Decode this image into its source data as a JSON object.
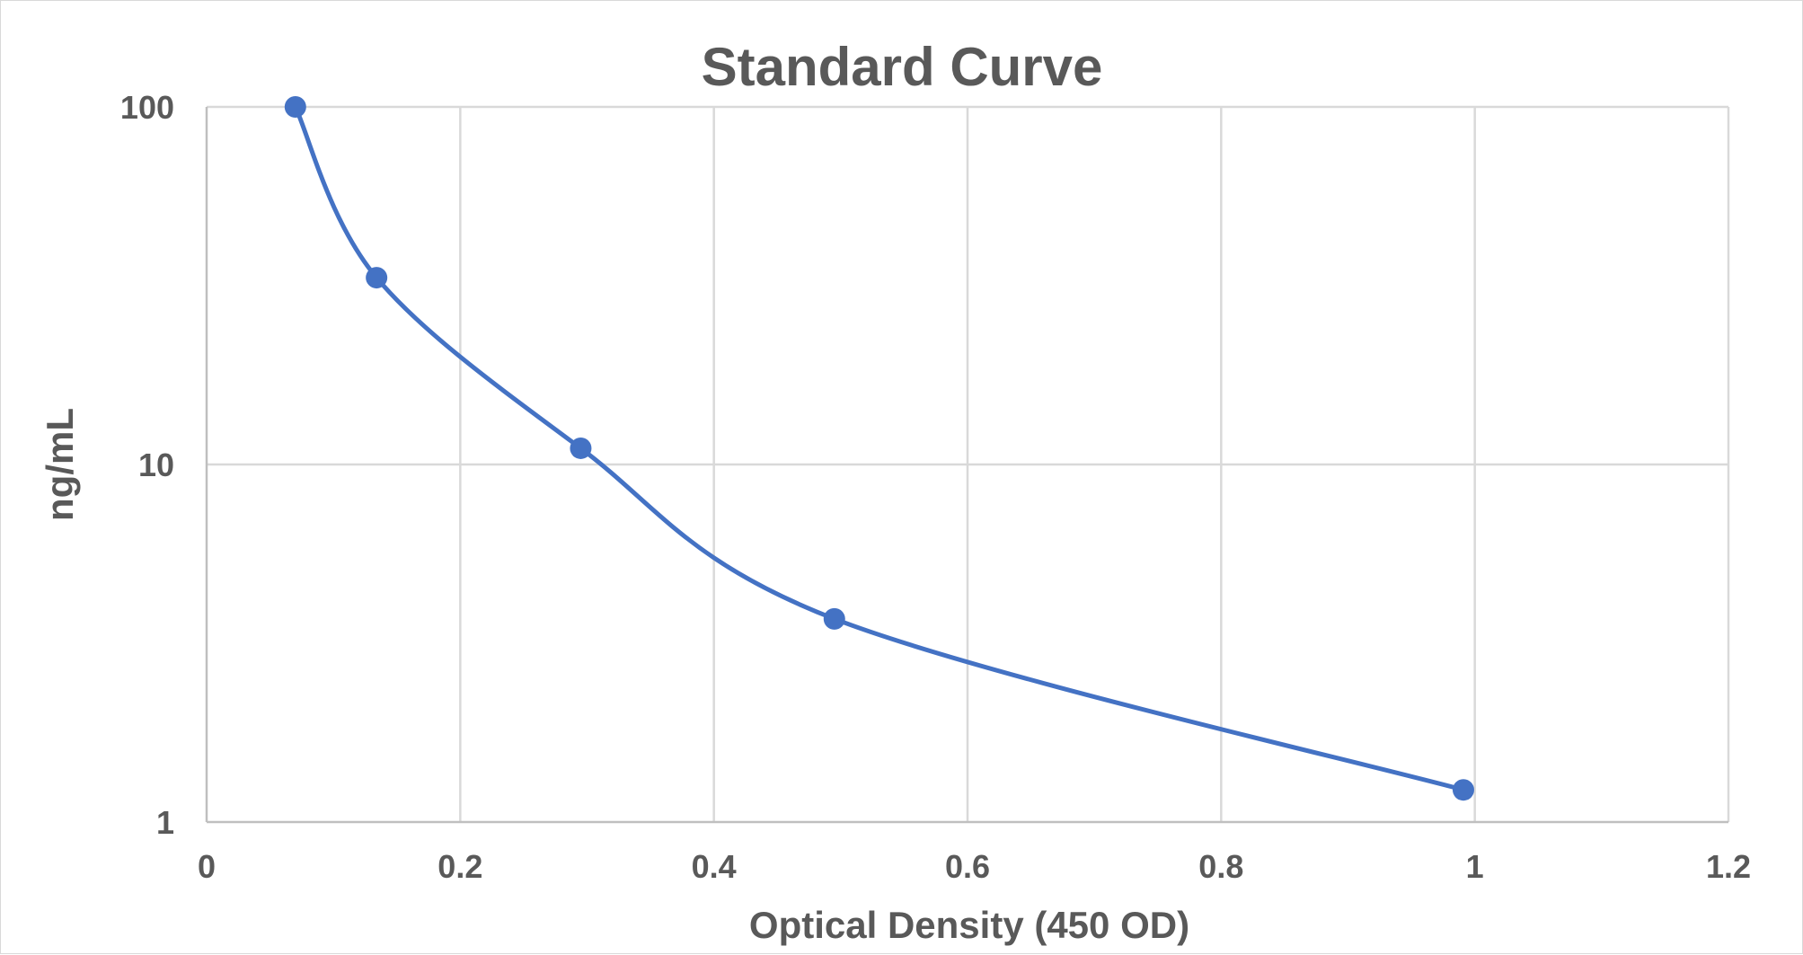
{
  "chart_data": {
    "type": "scatter",
    "title": "Standard Curve",
    "xlabel": "Optical Density (450 OD)",
    "ylabel": "ng/mL",
    "xlim": [
      0,
      1.2
    ],
    "ylim": [
      1,
      100
    ],
    "y_scale": "log",
    "x_ticks": [
      "0",
      "0.2",
      "0.4",
      "0.6",
      "0.8",
      "1",
      "1.2"
    ],
    "y_ticks": [
      "1",
      "10",
      "100"
    ],
    "grid": true,
    "legend": "none",
    "line_style": "smoothed",
    "series": [
      {
        "color": "#4472C4",
        "points": [
          {
            "x": 0.07,
            "y": 100
          },
          {
            "x": 0.134,
            "y": 33.3
          },
          {
            "x": 0.295,
            "y": 11.1
          },
          {
            "x": 0.495,
            "y": 3.7
          },
          {
            "x": 0.991,
            "y": 1.23
          }
        ]
      }
    ]
  }
}
